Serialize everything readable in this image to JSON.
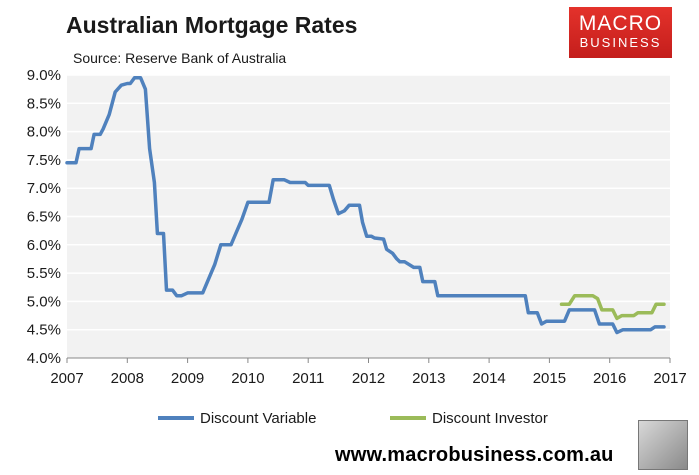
{
  "header": {
    "title": "Australian Mortgage Rates",
    "subtitle": "Source: Reserve Bank of Australia"
  },
  "logo": {
    "line1": "MACRO",
    "line2": "BUSINESS",
    "color": "#d42a25"
  },
  "footer": {
    "website": "www.macrobusiness.com.au"
  },
  "chart_data": {
    "type": "line",
    "title": "Australian Mortgage Rates",
    "xlabel": "",
    "ylabel": "",
    "xlim": [
      2007,
      2017
    ],
    "ylim": [
      4.0,
      9.0
    ],
    "x_ticks": [
      "2007",
      "2008",
      "2009",
      "2010",
      "2011",
      "2012",
      "2013",
      "2014",
      "2015",
      "2016",
      "2017"
    ],
    "y_ticks": [
      "4.0%",
      "4.5%",
      "5.0%",
      "5.5%",
      "6.0%",
      "6.5%",
      "7.0%",
      "7.5%",
      "8.0%",
      "8.5%",
      "9.0%"
    ],
    "grid": "horizontal",
    "legend_position": "bottom",
    "series": [
      {
        "name": "Discount Variable",
        "color": "#4f81bd",
        "points": [
          [
            2007.0,
            7.45
          ],
          [
            2007.15,
            7.45
          ],
          [
            2007.2,
            7.7
          ],
          [
            2007.4,
            7.7
          ],
          [
            2007.45,
            7.95
          ],
          [
            2007.55,
            7.95
          ],
          [
            2007.6,
            8.05
          ],
          [
            2007.7,
            8.3
          ],
          [
            2007.8,
            8.7
          ],
          [
            2007.9,
            8.82
          ],
          [
            2008.0,
            8.85
          ],
          [
            2008.05,
            8.85
          ],
          [
            2008.12,
            8.95
          ],
          [
            2008.22,
            8.95
          ],
          [
            2008.3,
            8.75
          ],
          [
            2008.37,
            7.7
          ],
          [
            2008.45,
            7.1
          ],
          [
            2008.5,
            6.2
          ],
          [
            2008.6,
            6.2
          ],
          [
            2008.65,
            5.2
          ],
          [
            2008.75,
            5.2
          ],
          [
            2008.82,
            5.1
          ],
          [
            2008.9,
            5.1
          ],
          [
            2009.0,
            5.15
          ],
          [
            2009.25,
            5.15
          ],
          [
            2009.33,
            5.35
          ],
          [
            2009.45,
            5.65
          ],
          [
            2009.55,
            6.0
          ],
          [
            2009.72,
            6.0
          ],
          [
            2009.8,
            6.2
          ],
          [
            2009.9,
            6.45
          ],
          [
            2010.0,
            6.75
          ],
          [
            2010.35,
            6.75
          ],
          [
            2010.42,
            7.15
          ],
          [
            2010.6,
            7.15
          ],
          [
            2010.7,
            7.1
          ],
          [
            2010.95,
            7.1
          ],
          [
            2011.0,
            7.05
          ],
          [
            2011.35,
            7.05
          ],
          [
            2011.42,
            6.8
          ],
          [
            2011.5,
            6.55
          ],
          [
            2011.6,
            6.6
          ],
          [
            2011.68,
            6.7
          ],
          [
            2011.85,
            6.7
          ],
          [
            2011.9,
            6.4
          ],
          [
            2011.97,
            6.15
          ],
          [
            2012.05,
            6.15
          ],
          [
            2012.1,
            6.12
          ],
          [
            2012.25,
            6.1
          ],
          [
            2012.3,
            5.92
          ],
          [
            2012.4,
            5.85
          ],
          [
            2012.47,
            5.75
          ],
          [
            2012.52,
            5.7
          ],
          [
            2012.6,
            5.7
          ],
          [
            2012.75,
            5.6
          ],
          [
            2012.85,
            5.6
          ],
          [
            2012.9,
            5.35
          ],
          [
            2013.1,
            5.35
          ],
          [
            2013.15,
            5.1
          ],
          [
            2014.6,
            5.1
          ],
          [
            2014.65,
            4.8
          ],
          [
            2014.8,
            4.8
          ],
          [
            2014.87,
            4.6
          ],
          [
            2014.95,
            4.65
          ],
          [
            2015.25,
            4.65
          ],
          [
            2015.33,
            4.85
          ],
          [
            2015.75,
            4.85
          ],
          [
            2015.83,
            4.6
          ],
          [
            2016.05,
            4.6
          ],
          [
            2016.12,
            4.45
          ],
          [
            2016.22,
            4.5
          ],
          [
            2016.68,
            4.5
          ],
          [
            2016.75,
            4.55
          ],
          [
            2016.9,
            4.55
          ]
        ]
      },
      {
        "name": "Discount Investor",
        "color": "#9bbb59",
        "points": [
          [
            2015.2,
            4.95
          ],
          [
            2015.33,
            4.95
          ],
          [
            2015.42,
            5.1
          ],
          [
            2015.72,
            5.1
          ],
          [
            2015.8,
            5.05
          ],
          [
            2015.87,
            4.85
          ],
          [
            2016.05,
            4.85
          ],
          [
            2016.12,
            4.7
          ],
          [
            2016.2,
            4.75
          ],
          [
            2016.4,
            4.75
          ],
          [
            2016.47,
            4.8
          ],
          [
            2016.7,
            4.8
          ],
          [
            2016.77,
            4.95
          ],
          [
            2016.9,
            4.95
          ]
        ]
      }
    ]
  }
}
